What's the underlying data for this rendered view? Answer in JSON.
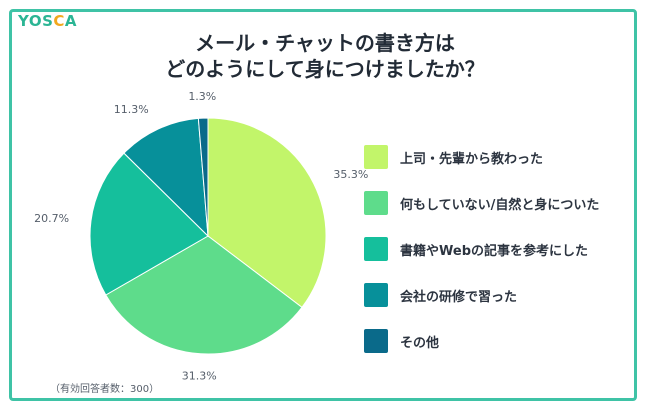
{
  "logo": {
    "text_main": "YOS",
    "text_accent": "C",
    "text_end": "A"
  },
  "title": {
    "line1": "メール・チャットの書き方は",
    "line2": "どのようにして身につけましたか？"
  },
  "note": "（有効回答者数：300）",
  "chart_data": {
    "type": "pie",
    "title": "メール・チャットの書き方はどのようにして身につけましたか？",
    "unit": "%",
    "slices": [
      {
        "label": "上司・先輩から教わった",
        "value": 35.3,
        "value_label": "35.3%",
        "color": "#c2f56a"
      },
      {
        "label": "何もしていない/自然と身についた",
        "value": 31.3,
        "value_label": "31.3%",
        "color": "#5edc8b"
      },
      {
        "label": "書籍やWebの記事を参考にした",
        "value": 20.7,
        "value_label": "20.7%",
        "color": "#15bf9c"
      },
      {
        "label": "会社の研修で習った",
        "value": 11.3,
        "value_label": "11.3%",
        "color": "#07909a"
      },
      {
        "label": "その他",
        "value": 1.3,
        "value_label": "1.3%",
        "color": "#0a6a8a"
      }
    ],
    "start_angle_deg": 0,
    "direction": "clockwise",
    "legend_position": "right"
  }
}
